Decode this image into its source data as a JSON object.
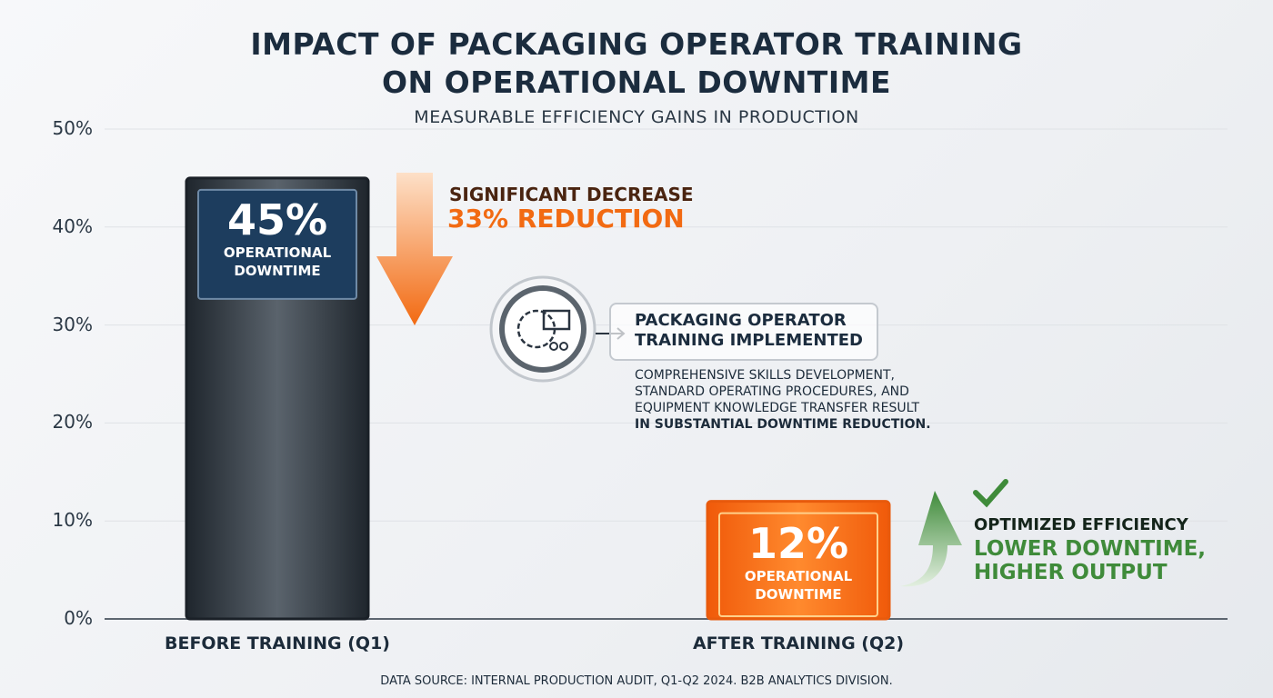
{
  "title_line1": "IMPACT OF PACKAGING OPERATOR TRAINING",
  "title_line2": "ON OPERATIONAL DOWNTIME",
  "subtitle": "MEASURABLE EFFICIENCY GAINS IN PRODUCTION",
  "chart_data": {
    "type": "bar",
    "categories": [
      "BEFORE TRAINING (Q1)",
      "AFTER TRAINING (Q2)"
    ],
    "values": [
      45,
      12
    ],
    "unit": "%",
    "value_labels": [
      "45%",
      "12%"
    ],
    "value_sublabel_line1": "OPERATIONAL",
    "value_sublabel_line2": "DOWNTIME",
    "ylim": [
      0,
      50
    ],
    "yticks": [
      0,
      10,
      20,
      30,
      40,
      50
    ],
    "ytick_labels": [
      "0%",
      "10%",
      "20%",
      "30%",
      "40%",
      "50%"
    ],
    "grid": true,
    "colors": {
      "before": "#2f3a44",
      "after": "#f26a12",
      "before_label": "#1d3d5e"
    }
  },
  "annotations": {
    "decrease_line1": "SIGNIFICANT DECREASE",
    "decrease_line2": "33% REDUCTION",
    "training_title_line1": "PACKAGING OPERATOR",
    "training_title_line2": "TRAINING IMPLEMENTED",
    "training_desc_line1": "COMPREHENSIVE SKILLS DEVELOPMENT,",
    "training_desc_line2": "STANDARD OPERATING PROCEDURES, AND",
    "training_desc_line3": "EQUIPMENT KNOWLEDGE TRANSFER RESULT",
    "training_desc_line4": "IN SUBSTANTIAL DOWNTIME REDUCTION.",
    "optimized_line1": "OPTIMIZED EFFICIENCY",
    "optimized_line2": "LOWER DOWNTIME,",
    "optimized_line3": "HIGHER OUTPUT",
    "icons": [
      "down-arrow-icon",
      "training-gear-icon",
      "up-arrow-icon",
      "checkmark-icon"
    ]
  },
  "source": "DATA SOURCE: INTERNAL PRODUCTION AUDIT, Q1-Q2 2024. B2B ANALYTICS DIVISION."
}
